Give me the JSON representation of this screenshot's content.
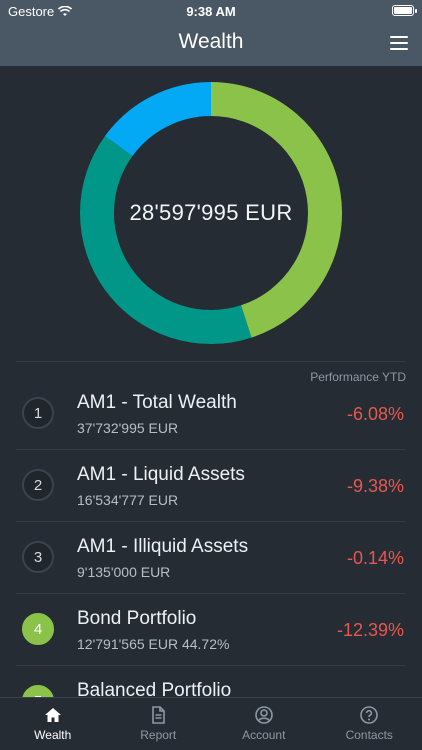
{
  "status": {
    "carrier": "Gestore",
    "time": "9:38 AM"
  },
  "nav": {
    "title": "Wealth"
  },
  "donut": {
    "total_label": "28'597'995 EUR",
    "segments": [
      {
        "color": "#8bc34a",
        "fraction": 0.45
      },
      {
        "color": "#009688",
        "fraction": 0.4
      },
      {
        "color": "#03a9f4",
        "fraction": 0.15
      }
    ]
  },
  "list_header": {
    "perf_label": "Performance YTD"
  },
  "portfolios": [
    {
      "number": "1",
      "title": "AM1 - Total Wealth",
      "subtitle": "37'732'995 EUR",
      "performance": "-6.08%",
      "active": false
    },
    {
      "number": "2",
      "title": "AM1 - Liquid Assets",
      "subtitle": "16'534'777 EUR",
      "performance": "-9.38%",
      "active": false
    },
    {
      "number": "3",
      "title": "AM1 - Illiquid Assets",
      "subtitle": "9'135'000 EUR",
      "performance": "-0.14%",
      "active": false
    },
    {
      "number": "4",
      "title": "Bond Portfolio",
      "subtitle": "12'791'565 EUR 44.72%",
      "performance": "-12.39%",
      "active": true
    },
    {
      "number": "5",
      "title": "Balanced Portfolio",
      "subtitle": "",
      "performance": "",
      "active": true
    }
  ],
  "tabs": [
    {
      "label": "Wealth",
      "icon": "home-icon",
      "active": true
    },
    {
      "label": "Report",
      "icon": "document-icon",
      "active": false
    },
    {
      "label": "Account",
      "icon": "user-circle-icon",
      "active": false
    },
    {
      "label": "Contacts",
      "icon": "help-circle-icon",
      "active": false
    }
  ],
  "colors": {
    "header": "#4a5765",
    "background": "#262c33",
    "negative": "#e8574f",
    "accent_green": "#8bc34a"
  }
}
